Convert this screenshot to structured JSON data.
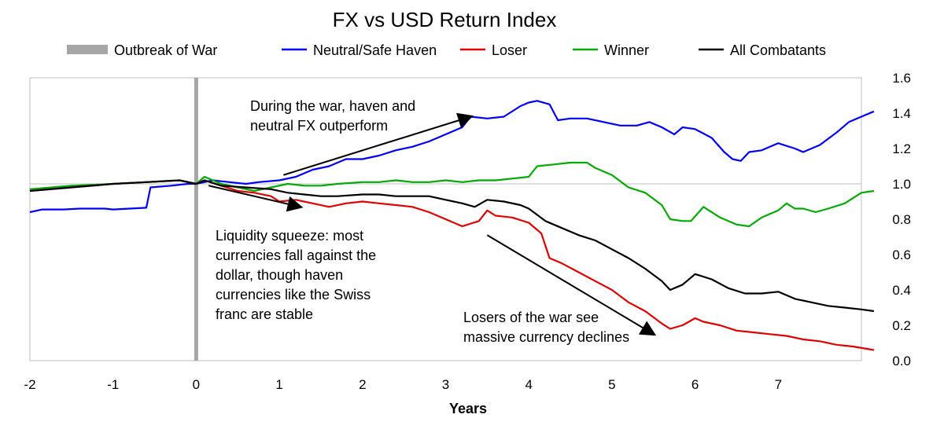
{
  "chart_data": {
    "type": "line",
    "title": "FX vs USD Return Index",
    "xlabel": "Years",
    "ylabel": "",
    "xlim": [
      -2,
      8
    ],
    "ylim": [
      0,
      1.6
    ],
    "x_ticks": [
      "-2",
      "-1",
      "0",
      "1",
      "2",
      "3",
      "4",
      "5",
      "6",
      "7"
    ],
    "y_ticks": [
      "0.0",
      "0.2",
      "0.4",
      "0.6",
      "0.8",
      "1.0",
      "1.2",
      "1.4",
      "1.6"
    ],
    "reference_line_y": 1.0,
    "event_line": {
      "name": "Outbreak of War",
      "x": 0,
      "color": "#a6a6a6"
    },
    "legend": [
      "Outbreak of War",
      "Neutral/Safe Haven",
      "Loser",
      "Winner",
      "All Combatants"
    ],
    "series": [
      {
        "name": "Neutral/Safe Haven",
        "color": "#0000ff",
        "points": [
          [
            -2,
            0.84
          ],
          [
            -1.85,
            0.855
          ],
          [
            -1.6,
            0.855
          ],
          [
            -1.4,
            0.86
          ],
          [
            -1.1,
            0.86
          ],
          [
            -1.0,
            0.855
          ],
          [
            -0.8,
            0.86
          ],
          [
            -0.6,
            0.865
          ],
          [
            -0.55,
            0.98
          ],
          [
            -0.3,
            0.99
          ],
          [
            -0.1,
            1.0
          ],
          [
            0,
            1.0
          ],
          [
            0.2,
            1.02
          ],
          [
            0.4,
            1.01
          ],
          [
            0.6,
            1.0
          ],
          [
            0.75,
            1.01
          ],
          [
            1.0,
            1.02
          ],
          [
            1.2,
            1.04
          ],
          [
            1.4,
            1.08
          ],
          [
            1.6,
            1.1
          ],
          [
            1.8,
            1.14
          ],
          [
            2.0,
            1.14
          ],
          [
            2.2,
            1.16
          ],
          [
            2.4,
            1.19
          ],
          [
            2.6,
            1.21
          ],
          [
            2.8,
            1.24
          ],
          [
            3.0,
            1.28
          ],
          [
            3.2,
            1.32
          ],
          [
            3.3,
            1.38
          ],
          [
            3.5,
            1.37
          ],
          [
            3.7,
            1.38
          ],
          [
            3.9,
            1.44
          ],
          [
            4.0,
            1.46
          ],
          [
            4.1,
            1.47
          ],
          [
            4.25,
            1.45
          ],
          [
            4.35,
            1.36
          ],
          [
            4.5,
            1.37
          ],
          [
            4.7,
            1.37
          ],
          [
            4.9,
            1.35
          ],
          [
            5.1,
            1.33
          ],
          [
            5.3,
            1.33
          ],
          [
            5.45,
            1.35
          ],
          [
            5.6,
            1.32
          ],
          [
            5.75,
            1.28
          ],
          [
            5.85,
            1.32
          ],
          [
            6.0,
            1.31
          ],
          [
            6.2,
            1.26
          ],
          [
            6.35,
            1.18
          ],
          [
            6.45,
            1.14
          ],
          [
            6.55,
            1.13
          ],
          [
            6.65,
            1.18
          ],
          [
            6.8,
            1.19
          ],
          [
            7.0,
            1.23
          ],
          [
            7.2,
            1.2
          ],
          [
            7.3,
            1.18
          ],
          [
            7.5,
            1.22
          ],
          [
            7.7,
            1.29
          ],
          [
            7.85,
            1.35
          ],
          [
            8.0,
            1.38
          ],
          [
            8.15,
            1.41
          ]
        ]
      },
      {
        "name": "Loser",
        "color": "#e00000",
        "points": [
          [
            -2,
            0.96
          ],
          [
            -1.5,
            0.98
          ],
          [
            -1.0,
            1.0
          ],
          [
            -0.6,
            1.01
          ],
          [
            -0.2,
            1.02
          ],
          [
            0,
            1.0
          ],
          [
            0.1,
            1.02
          ],
          [
            0.3,
            0.99
          ],
          [
            0.5,
            0.96
          ],
          [
            0.7,
            0.95
          ],
          [
            0.9,
            0.93
          ],
          [
            1.0,
            0.9
          ],
          [
            1.2,
            0.91
          ],
          [
            1.4,
            0.89
          ],
          [
            1.6,
            0.87
          ],
          [
            1.8,
            0.89
          ],
          [
            2.0,
            0.9
          ],
          [
            2.2,
            0.89
          ],
          [
            2.4,
            0.88
          ],
          [
            2.6,
            0.87
          ],
          [
            2.8,
            0.84
          ],
          [
            3.0,
            0.8
          ],
          [
            3.2,
            0.76
          ],
          [
            3.4,
            0.79
          ],
          [
            3.5,
            0.85
          ],
          [
            3.6,
            0.82
          ],
          [
            3.8,
            0.81
          ],
          [
            4.0,
            0.78
          ],
          [
            4.15,
            0.72
          ],
          [
            4.25,
            0.58
          ],
          [
            4.4,
            0.55
          ],
          [
            4.6,
            0.5
          ],
          [
            4.8,
            0.45
          ],
          [
            5.0,
            0.4
          ],
          [
            5.2,
            0.33
          ],
          [
            5.4,
            0.28
          ],
          [
            5.6,
            0.21
          ],
          [
            5.7,
            0.18
          ],
          [
            5.85,
            0.2
          ],
          [
            6.0,
            0.24
          ],
          [
            6.1,
            0.22
          ],
          [
            6.3,
            0.2
          ],
          [
            6.5,
            0.17
          ],
          [
            6.7,
            0.16
          ],
          [
            6.9,
            0.15
          ],
          [
            7.1,
            0.14
          ],
          [
            7.3,
            0.12
          ],
          [
            7.5,
            0.11
          ],
          [
            7.7,
            0.09
          ],
          [
            7.9,
            0.08
          ],
          [
            8.15,
            0.06
          ]
        ]
      },
      {
        "name": "Winner",
        "color": "#00aa00",
        "points": [
          [
            -2,
            0.97
          ],
          [
            -1.5,
            0.99
          ],
          [
            -1.0,
            1.0
          ],
          [
            -0.6,
            1.01
          ],
          [
            -0.2,
            1.02
          ],
          [
            0,
            1.0
          ],
          [
            0.1,
            1.04
          ],
          [
            0.3,
            1.0
          ],
          [
            0.5,
            0.98
          ],
          [
            0.7,
            0.96
          ],
          [
            0.9,
            0.98
          ],
          [
            1.1,
            1.0
          ],
          [
            1.3,
            0.99
          ],
          [
            1.5,
            0.99
          ],
          [
            1.7,
            1.0
          ],
          [
            2.0,
            1.01
          ],
          [
            2.2,
            1.01
          ],
          [
            2.4,
            1.02
          ],
          [
            2.6,
            1.01
          ],
          [
            2.8,
            1.01
          ],
          [
            3.0,
            1.02
          ],
          [
            3.2,
            1.01
          ],
          [
            3.4,
            1.02
          ],
          [
            3.6,
            1.02
          ],
          [
            3.8,
            1.03
          ],
          [
            4.0,
            1.04
          ],
          [
            4.1,
            1.1
          ],
          [
            4.3,
            1.11
          ],
          [
            4.5,
            1.12
          ],
          [
            4.7,
            1.12
          ],
          [
            4.8,
            1.09
          ],
          [
            5.0,
            1.05
          ],
          [
            5.2,
            0.98
          ],
          [
            5.4,
            0.95
          ],
          [
            5.6,
            0.88
          ],
          [
            5.7,
            0.8
          ],
          [
            5.85,
            0.79
          ],
          [
            5.95,
            0.79
          ],
          [
            6.1,
            0.87
          ],
          [
            6.3,
            0.81
          ],
          [
            6.5,
            0.77
          ],
          [
            6.65,
            0.76
          ],
          [
            6.8,
            0.81
          ],
          [
            7.0,
            0.85
          ],
          [
            7.1,
            0.89
          ],
          [
            7.2,
            0.86
          ],
          [
            7.3,
            0.86
          ],
          [
            7.45,
            0.84
          ],
          [
            7.6,
            0.86
          ],
          [
            7.8,
            0.89
          ],
          [
            8.0,
            0.95
          ],
          [
            8.15,
            0.96
          ]
        ]
      },
      {
        "name": "All Combatants",
        "color": "#000000",
        "points": [
          [
            -2,
            0.96
          ],
          [
            -1.5,
            0.98
          ],
          [
            -1.0,
            1.0
          ],
          [
            -0.6,
            1.01
          ],
          [
            -0.2,
            1.02
          ],
          [
            0,
            1.0
          ],
          [
            0.1,
            1.02
          ],
          [
            0.3,
            0.99
          ],
          [
            0.6,
            0.98
          ],
          [
            0.9,
            0.97
          ],
          [
            1.1,
            0.95
          ],
          [
            1.3,
            0.94
          ],
          [
            1.5,
            0.93
          ],
          [
            1.7,
            0.93
          ],
          [
            2.0,
            0.94
          ],
          [
            2.2,
            0.94
          ],
          [
            2.4,
            0.93
          ],
          [
            2.6,
            0.93
          ],
          [
            2.8,
            0.93
          ],
          [
            3.0,
            0.91
          ],
          [
            3.2,
            0.89
          ],
          [
            3.35,
            0.87
          ],
          [
            3.5,
            0.91
          ],
          [
            3.7,
            0.9
          ],
          [
            3.9,
            0.88
          ],
          [
            4.0,
            0.86
          ],
          [
            4.2,
            0.79
          ],
          [
            4.4,
            0.75
          ],
          [
            4.6,
            0.71
          ],
          [
            4.8,
            0.68
          ],
          [
            5.0,
            0.63
          ],
          [
            5.2,
            0.58
          ],
          [
            5.4,
            0.52
          ],
          [
            5.6,
            0.45
          ],
          [
            5.7,
            0.4
          ],
          [
            5.85,
            0.43
          ],
          [
            6.0,
            0.49
          ],
          [
            6.2,
            0.46
          ],
          [
            6.4,
            0.41
          ],
          [
            6.6,
            0.38
          ],
          [
            6.8,
            0.38
          ],
          [
            7.0,
            0.39
          ],
          [
            7.2,
            0.35
          ],
          [
            7.4,
            0.33
          ],
          [
            7.6,
            0.31
          ],
          [
            7.8,
            0.3
          ],
          [
            8.0,
            0.29
          ],
          [
            8.15,
            0.28
          ]
        ]
      }
    ],
    "annotations": [
      {
        "lines": [
          "During the war, haven and",
          "neutral FX outperform"
        ],
        "arrow_from": [
          1.05,
          1.05
        ],
        "arrow_to": [
          3.3,
          1.38
        ]
      },
      {
        "lines": [
          "Liquidity squeeze: most",
          "currencies fall against the",
          "dollar, though haven",
          "currencies like the Swiss",
          "franc are stable"
        ],
        "arrow_from": [
          0.15,
          0.99
        ],
        "arrow_to": [
          1.25,
          0.87
        ]
      },
      {
        "lines": [
          "Losers of the war see",
          "massive currency declines"
        ],
        "arrow_from": [
          3.5,
          0.71
        ],
        "arrow_to": [
          5.5,
          0.15
        ]
      }
    ]
  }
}
